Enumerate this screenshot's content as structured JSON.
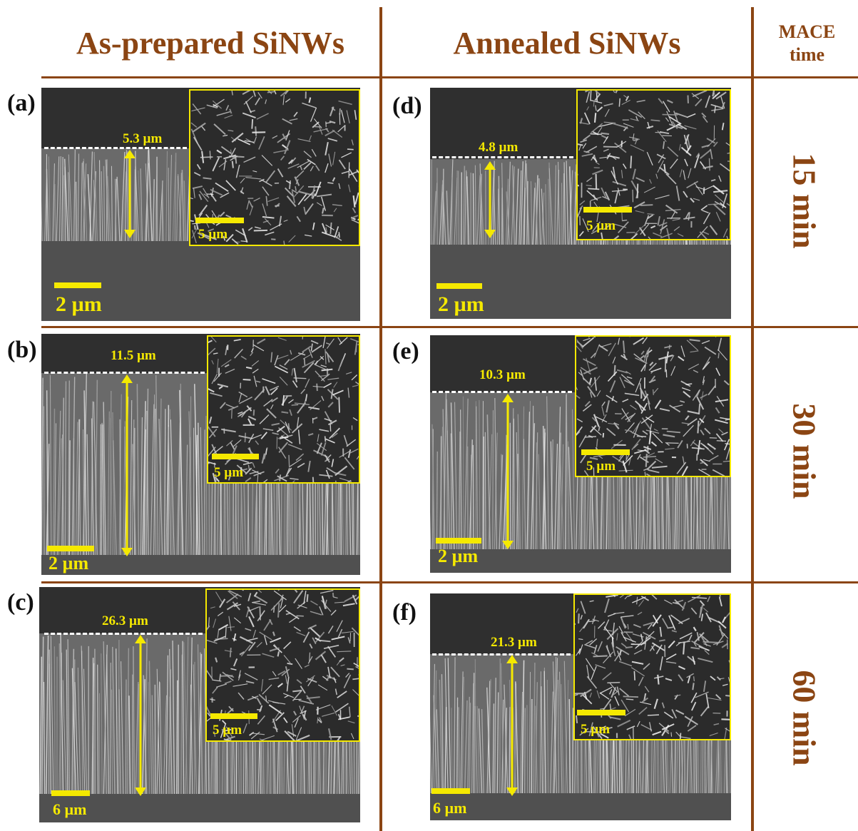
{
  "headers": {
    "col1": "As-prepared SiNWs",
    "col2": "Annealed SiNWs",
    "col3_line1": "MACE",
    "col3_line2": "time"
  },
  "rows": [
    {
      "time": "15 min"
    },
    {
      "time": "30 min"
    },
    {
      "time": "60 min"
    }
  ],
  "panels": {
    "a": {
      "label": "(a)",
      "height": "5.3 µm",
      "scale": "2 µm",
      "inset_scale": "5 µm"
    },
    "b": {
      "label": "(b)",
      "height": "11.5 µm",
      "scale": "2 µm",
      "inset_scale": "5 µm"
    },
    "c": {
      "label": "(c)",
      "height": "26.3 µm",
      "scale": "6 µm",
      "inset_scale": "5 µm"
    },
    "d": {
      "label": "(d)",
      "height": "4.8 µm",
      "scale": "2 µm",
      "inset_scale": "5 µm"
    },
    "e": {
      "label": "(e)",
      "height": "10.3 µm",
      "scale": "2 µm",
      "inset_scale": "5 µm"
    },
    "f": {
      "label": "(f)",
      "height": "21.3 µm",
      "scale": "6 µm",
      "inset_scale": "5 µm"
    }
  },
  "colors": {
    "header_brown": "#8b4513",
    "annotation_yellow": "#f5e900",
    "dash_white": "#ffffff"
  }
}
